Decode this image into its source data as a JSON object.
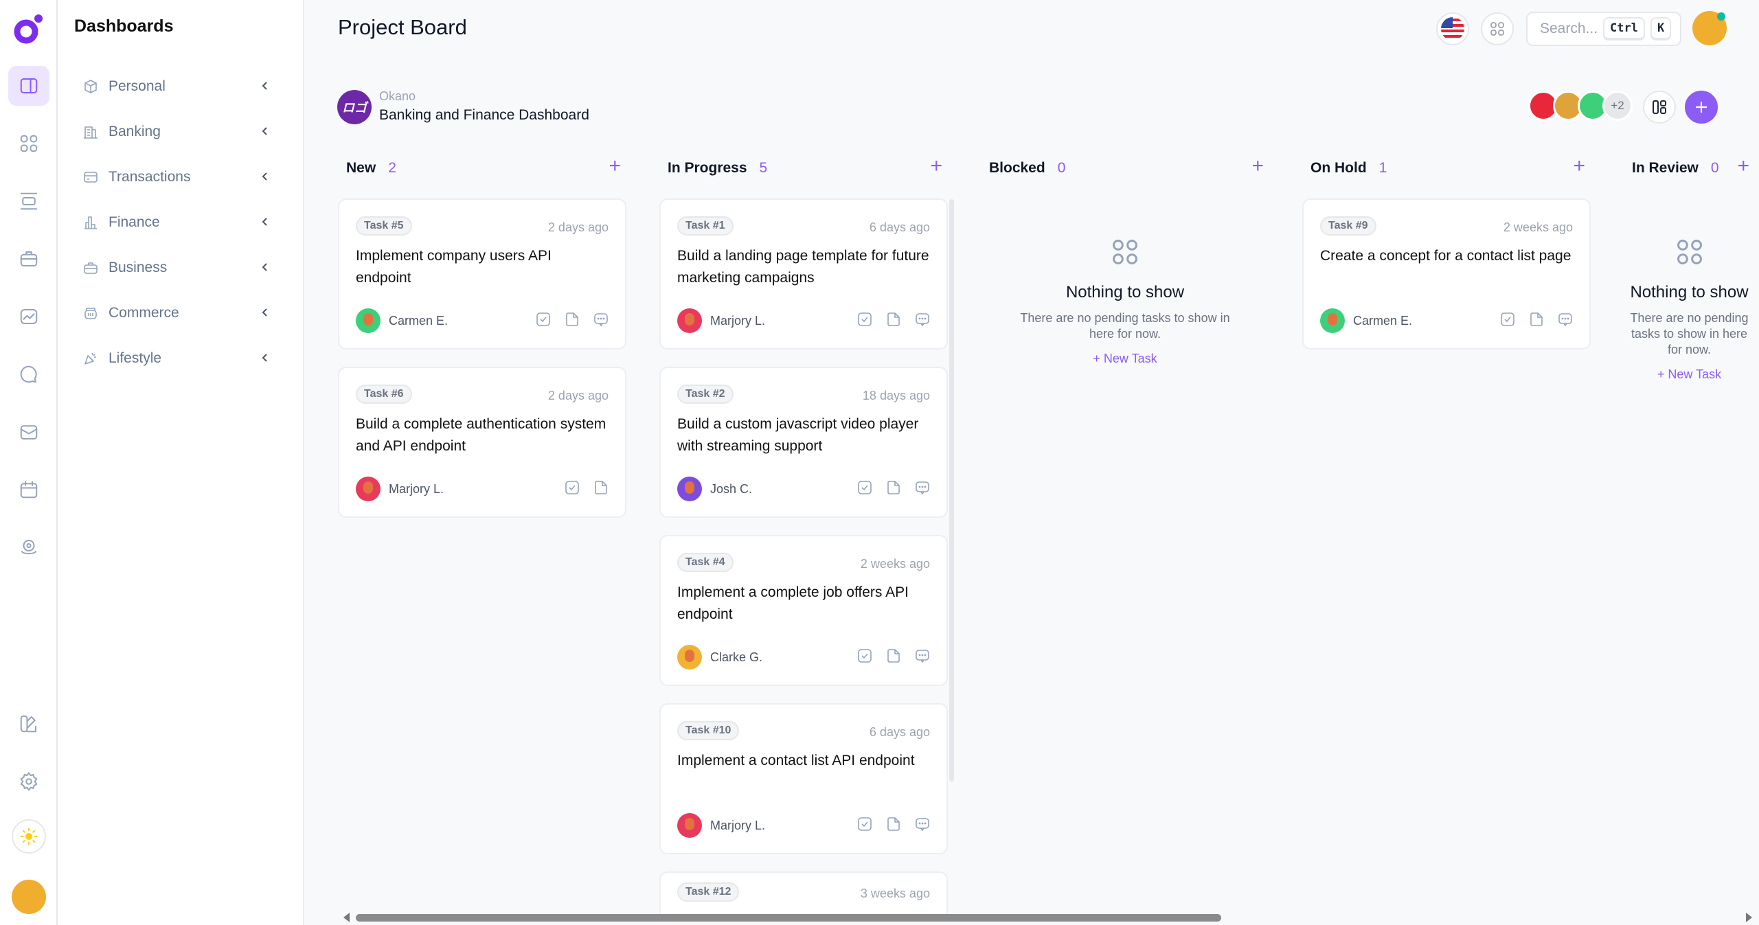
{
  "sidebar": {
    "title": "Dashboards",
    "items": [
      {
        "label": "Personal",
        "icon": "box-icon"
      },
      {
        "label": "Banking",
        "icon": "building-icon"
      },
      {
        "label": "Transactions",
        "icon": "credit-card-icon"
      },
      {
        "label": "Finance",
        "icon": "bar-chart-icon"
      },
      {
        "label": "Business",
        "icon": "briefcase-icon"
      },
      {
        "label": "Commerce",
        "icon": "basket-icon"
      },
      {
        "label": "Lifestyle",
        "icon": "party-icon"
      }
    ],
    "rail_icons": [
      "dashboard-icon",
      "apps-icon",
      "layout-icon",
      "briefcase-icon",
      "chart-icon",
      "chat-icon",
      "mail-icon",
      "calendar-icon",
      "location-icon",
      "palette-icon",
      "gear-icon",
      "sun-icon"
    ]
  },
  "header": {
    "title": "Project Board",
    "search_placeholder": "Search...",
    "kbd_ctrl": "Ctrl",
    "kbd_k": "K"
  },
  "project": {
    "org": "Okano",
    "name": "Banking and Finance Dashboard",
    "logo_text": "ロゴ",
    "extra_members": "+2"
  },
  "colors": {
    "accent": "#8b5cf6",
    "background": "#f8f9fb"
  },
  "columns": [
    {
      "name": "New",
      "count": "2",
      "cards": [
        {
          "task": "Task #5",
          "time": "2 days ago",
          "title": "Implement company users API endpoint",
          "assignee": "Carmen E.",
          "color": "#3dcf7a",
          "comments": true
        },
        {
          "task": "Task #6",
          "time": "2 days ago",
          "title": "Build a complete authentication system and API endpoint",
          "assignee": "Marjory L.",
          "color": "#e83a5a",
          "comments": false
        }
      ]
    },
    {
      "name": "In Progress",
      "count": "5",
      "cards": [
        {
          "task": "Task #1",
          "time": "6 days ago",
          "title": "Build a landing page template for future marketing campaigns",
          "assignee": "Marjory L.",
          "color": "#e83a5a",
          "comments": true
        },
        {
          "task": "Task #2",
          "time": "18 days ago",
          "title": "Build a custom javascript video player with streaming support",
          "assignee": "Josh C.",
          "color": "#7c4ddb",
          "comments": true
        },
        {
          "task": "Task #4",
          "time": "2 weeks ago",
          "title": "Implement a complete job offers API endpoint",
          "assignee": "Clarke G.",
          "color": "#f2b233",
          "comments": true
        },
        {
          "task": "Task #10",
          "time": "6 days ago",
          "title": "Implement a contact list API endpoint",
          "assignee": "Marjory L.",
          "color": "#e83a5a",
          "comments": true
        },
        {
          "task": "Task #12",
          "time": "3 weeks ago",
          "title": "",
          "assignee": "",
          "color": "#e83a5a",
          "comments": true
        }
      ]
    },
    {
      "name": "Blocked",
      "count": "0",
      "cards": [],
      "empty": {
        "title": "Nothing to show",
        "text": "There are no pending tasks to show in here for now.",
        "action": "+ New Task"
      }
    },
    {
      "name": "On Hold",
      "count": "1",
      "cards": [
        {
          "task": "Task #9",
          "time": "2 weeks ago",
          "title": "Create a concept for a contact list page",
          "assignee": "Carmen E.",
          "color": "#3dcf7a",
          "comments": true
        }
      ]
    },
    {
      "name": "In Review",
      "count": "0",
      "cards": [],
      "empty": {
        "title": "Nothing to show",
        "text": "There are no pending tasks to show in here for now.",
        "action": "+ New Task"
      }
    }
  ]
}
